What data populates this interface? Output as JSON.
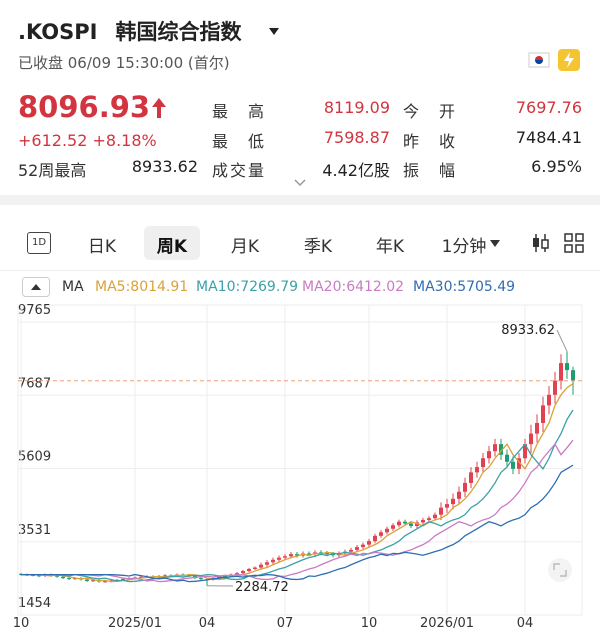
{
  "header": {
    "symbol": ".KOSPI",
    "name": "韩国综合指数",
    "status": "已收盘 06/09 15:30:00 (首尔)"
  },
  "quote": {
    "price": "8096.93",
    "change": "+612.52",
    "change_pct": "+8.18%",
    "week52_label": "52周最高",
    "week52_value": "8933.62"
  },
  "stats": [
    [
      {
        "label": "最高",
        "value": "8119.09"
      },
      {
        "label": "今开",
        "value": "7697.76"
      }
    ],
    [
      {
        "label": "最低",
        "value": "7598.87"
      },
      {
        "label": "昨收",
        "value": "7484.41"
      }
    ],
    [
      {
        "label": "成交量",
        "value": "4.42亿股"
      },
      {
        "label": "振幅",
        "value": "6.95%"
      }
    ]
  ],
  "tabs": {
    "icon": "1D",
    "items": [
      "日K",
      "周K",
      "月K",
      "季K",
      "年K",
      "1分钟"
    ],
    "active": 1
  },
  "chart_data": {
    "type": "candlestick",
    "legend_title": "MA",
    "ylim": [
      1454,
      9765
    ],
    "yticks": [
      1454,
      3531,
      5609,
      7687,
      9765
    ],
    "grid": true,
    "up_color": "#e0434f",
    "down_color": "#1f9d6e",
    "last_line_color": "#e8a07a",
    "high_label": "8933.62",
    "low_label": "2284.72",
    "categories": [
      "10",
      null,
      null,
      null,
      null,
      null,
      null,
      null,
      null,
      null,
      null,
      null,
      null,
      null,
      null,
      null,
      null,
      null,
      null,
      "2025/01",
      null,
      null,
      null,
      null,
      null,
      null,
      null,
      null,
      null,
      null,
      null,
      "04",
      null,
      null,
      null,
      null,
      null,
      null,
      null,
      null,
      null,
      null,
      null,
      null,
      "07",
      null,
      null,
      null,
      null,
      null,
      null,
      null,
      null,
      null,
      null,
      null,
      null,
      null,
      "10",
      null,
      null,
      null,
      null,
      null,
      null,
      null,
      null,
      null,
      null,
      null,
      null,
      "2026/01",
      null,
      null,
      null,
      null,
      null,
      null,
      null,
      null,
      null,
      null,
      null,
      null,
      "04",
      null,
      null,
      null,
      null,
      null,
      null,
      null,
      null
    ],
    "candles": {
      "open": [
        2620,
        2600,
        2590,
        2580,
        2560,
        2600,
        2570,
        2540,
        2500,
        2480,
        2500,
        2460,
        2420,
        2440,
        2400,
        2410,
        2430,
        2450,
        2480,
        2500,
        2520,
        2540,
        2550,
        2530,
        2560,
        2580,
        2570,
        2600,
        2590,
        2560,
        2500,
        2470,
        2460,
        2480,
        2560,
        2550,
        2600,
        2640,
        2700,
        2760,
        2800,
        2880,
        2950,
        3020,
        3080,
        3120,
        3180,
        3140,
        3200,
        3190,
        3230,
        3210,
        3180,
        3150,
        3200,
        3250,
        3300,
        3380,
        3450,
        3550,
        3700,
        3800,
        3900,
        4000,
        4100,
        4050,
        3980,
        4080,
        4150,
        4200,
        4300,
        4500,
        4600,
        4750,
        4950,
        5200,
        5500,
        5650,
        5900,
        6100,
        6300,
        6000,
        5800,
        5600,
        5900,
        6300,
        6600,
        6900,
        7400,
        7700,
        8100,
        8600,
        8400
      ],
      "high": [
        2650,
        2630,
        2620,
        2610,
        2630,
        2630,
        2600,
        2570,
        2530,
        2530,
        2530,
        2490,
        2470,
        2470,
        2440,
        2460,
        2480,
        2510,
        2530,
        2550,
        2570,
        2580,
        2580,
        2590,
        2610,
        2610,
        2630,
        2630,
        2620,
        2590,
        2530,
        2500,
        2510,
        2590,
        2590,
        2630,
        2670,
        2730,
        2790,
        2830,
        2940,
        3010,
        3080,
        3140,
        3180,
        3240,
        3240,
        3260,
        3260,
        3290,
        3290,
        3270,
        3240,
        3260,
        3310,
        3360,
        3440,
        3510,
        3610,
        3760,
        3860,
        3960,
        4060,
        4160,
        4160,
        4110,
        4140,
        4210,
        4260,
        4360,
        4650,
        4750,
        4900,
        5100,
        5350,
        5650,
        5800,
        6050,
        6250,
        6450,
        6450,
        6150,
        5950,
        6050,
        6450,
        6850,
        7150,
        7650,
        7950,
        8350,
        8850,
        8933.62,
        8500
      ],
      "low": [
        2570,
        2560,
        2550,
        2530,
        2530,
        2540,
        2510,
        2470,
        2450,
        2450,
        2430,
        2390,
        2390,
        2370,
        2370,
        2380,
        2400,
        2420,
        2450,
        2470,
        2490,
        2510,
        2500,
        2500,
        2530,
        2540,
        2540,
        2560,
        2530,
        2470,
        2440,
        2284.72,
        2430,
        2450,
        2520,
        2520,
        2570,
        2610,
        2670,
        2730,
        2740,
        2820,
        2890,
        2960,
        3020,
        3060,
        3080,
        3080,
        3130,
        3130,
        3150,
        3120,
        3090,
        3090,
        3140,
        3190,
        3240,
        3320,
        3390,
        3490,
        3640,
        3740,
        3840,
        3940,
        3990,
        3920,
        3920,
        4020,
        4090,
        4140,
        4150,
        4350,
        4450,
        4600,
        4800,
        5050,
        5350,
        5500,
        5750,
        5950,
        5850,
        5650,
        5450,
        5450,
        5750,
        6050,
        6350,
        6650,
        7150,
        7450,
        7850,
        8150,
        7700
      ],
      "close": [
        2600,
        2590,
        2580,
        2560,
        2600,
        2570,
        2540,
        2500,
        2480,
        2500,
        2460,
        2420,
        2440,
        2400,
        2410,
        2430,
        2450,
        2480,
        2500,
        2520,
        2540,
        2550,
        2530,
        2560,
        2580,
        2570,
        2600,
        2590,
        2560,
        2500,
        2470,
        2460,
        2480,
        2560,
        2550,
        2600,
        2640,
        2700,
        2760,
        2800,
        2880,
        2950,
        3020,
        3080,
        3120,
        3180,
        3140,
        3200,
        3190,
        3230,
        3210,
        3180,
        3150,
        3200,
        3250,
        3300,
        3380,
        3450,
        3550,
        3700,
        3800,
        3900,
        4000,
        4100,
        4050,
        3980,
        4080,
        4150,
        4200,
        4300,
        4500,
        4600,
        4750,
        4950,
        5200,
        5500,
        5650,
        5900,
        6100,
        6300,
        6000,
        5800,
        5600,
        5900,
        6300,
        6600,
        6900,
        7400,
        7700,
        8100,
        8600,
        8400,
        8096.93
      ]
    },
    "series": [
      {
        "name": "MA5:8014.91",
        "color": "#d9a23a",
        "values": [
          2600,
          2600,
          2600,
          2590,
          2580,
          2560,
          2600,
          2570,
          2540,
          2500,
          2480,
          2500,
          2460,
          2420,
          2440,
          2400,
          2410,
          2430,
          2450,
          2480,
          2500,
          2520,
          2540,
          2550,
          2530,
          2560,
          2580,
          2570,
          2600,
          2590,
          2560,
          2500,
          2470,
          2460,
          2480,
          2560,
          2550,
          2600,
          2640,
          2700,
          2760,
          2800,
          2880,
          2950,
          3020,
          3080,
          3120,
          3180,
          3140,
          3200,
          3190,
          3230,
          3210,
          3180,
          3150,
          3200,
          3250,
          3300,
          3380,
          3450,
          3550,
          3700,
          3800,
          3900,
          4000,
          4100,
          4050,
          3980,
          4080,
          4150,
          4200,
          4300,
          4500,
          4600,
          4750,
          4950,
          5200,
          5500,
          5650,
          5900,
          6100,
          6300,
          6000,
          5800,
          5600,
          5900,
          6300,
          6600,
          6900,
          7400,
          7700,
          7900,
          8014.91
        ]
      },
      {
        "name": "MA10:7269.79",
        "color": "#3aa1a8",
        "values": [
          2600,
          2600,
          2600,
          2600,
          2600,
          2600,
          2590,
          2580,
          2560,
          2600,
          2570,
          2540,
          2500,
          2480,
          2500,
          2460,
          2420,
          2440,
          2400,
          2410,
          2430,
          2450,
          2480,
          2500,
          2520,
          2540,
          2550,
          2530,
          2560,
          2580,
          2570,
          2600,
          2590,
          2560,
          2500,
          2470,
          2460,
          2480,
          2560,
          2550,
          2600,
          2640,
          2700,
          2760,
          2800,
          2880,
          2950,
          3020,
          3080,
          3120,
          3180,
          3140,
          3200,
          3190,
          3230,
          3210,
          3180,
          3150,
          3200,
          3250,
          3300,
          3380,
          3450,
          3550,
          3700,
          3800,
          3900,
          4000,
          4100,
          4050,
          3980,
          4080,
          4150,
          4200,
          4300,
          4500,
          4600,
          4750,
          4950,
          5200,
          5500,
          5650,
          5900,
          6100,
          6300,
          6000,
          5800,
          5600,
          5900,
          6300,
          6600,
          7000,
          7269.79
        ]
      },
      {
        "name": "MA20:6412.02",
        "color": "#c97bc4",
        "values": [
          2600,
          2600,
          2600,
          2600,
          2600,
          2600,
          2600,
          2600,
          2600,
          2600,
          2600,
          2590,
          2580,
          2560,
          2600,
          2570,
          2540,
          2500,
          2480,
          2500,
          2460,
          2420,
          2440,
          2400,
          2410,
          2430,
          2450,
          2480,
          2500,
          2520,
          2540,
          2550,
          2530,
          2560,
          2580,
          2570,
          2600,
          2590,
          2560,
          2500,
          2470,
          2460,
          2480,
          2560,
          2550,
          2600,
          2640,
          2700,
          2760,
          2800,
          2880,
          2950,
          3020,
          3080,
          3120,
          3180,
          3140,
          3200,
          3190,
          3230,
          3210,
          3180,
          3150,
          3200,
          3250,
          3300,
          3380,
          3450,
          3550,
          3700,
          3800,
          3900,
          4000,
          4100,
          4050,
          3980,
          4080,
          4150,
          4200,
          4300,
          4500,
          4600,
          4750,
          4950,
          5200,
          5500,
          5650,
          5900,
          6100,
          6300,
          6000,
          6200,
          6412.02
        ]
      },
      {
        "name": "MA30:5705.49",
        "color": "#2f6db3",
        "values": [
          2600,
          2600,
          2600,
          2600,
          2600,
          2600,
          2600,
          2600,
          2600,
          2600,
          2600,
          2600,
          2600,
          2600,
          2600,
          2600,
          2590,
          2580,
          2560,
          2600,
          2570,
          2540,
          2500,
          2480,
          2500,
          2460,
          2420,
          2440,
          2400,
          2410,
          2430,
          2450,
          2480,
          2500,
          2520,
          2540,
          2550,
          2530,
          2560,
          2580,
          2570,
          2600,
          2590,
          2560,
          2500,
          2470,
          2460,
          2480,
          2560,
          2550,
          2600,
          2640,
          2700,
          2760,
          2800,
          2880,
          2950,
          3020,
          3080,
          3120,
          3180,
          3140,
          3200,
          3190,
          3230,
          3210,
          3180,
          3150,
          3200,
          3250,
          3300,
          3380,
          3450,
          3550,
          3700,
          3800,
          3900,
          4000,
          4100,
          4050,
          3980,
          4080,
          4150,
          4200,
          4300,
          4500,
          4600,
          4750,
          4950,
          5200,
          5500,
          5600,
          5705.49
        ]
      }
    ]
  }
}
